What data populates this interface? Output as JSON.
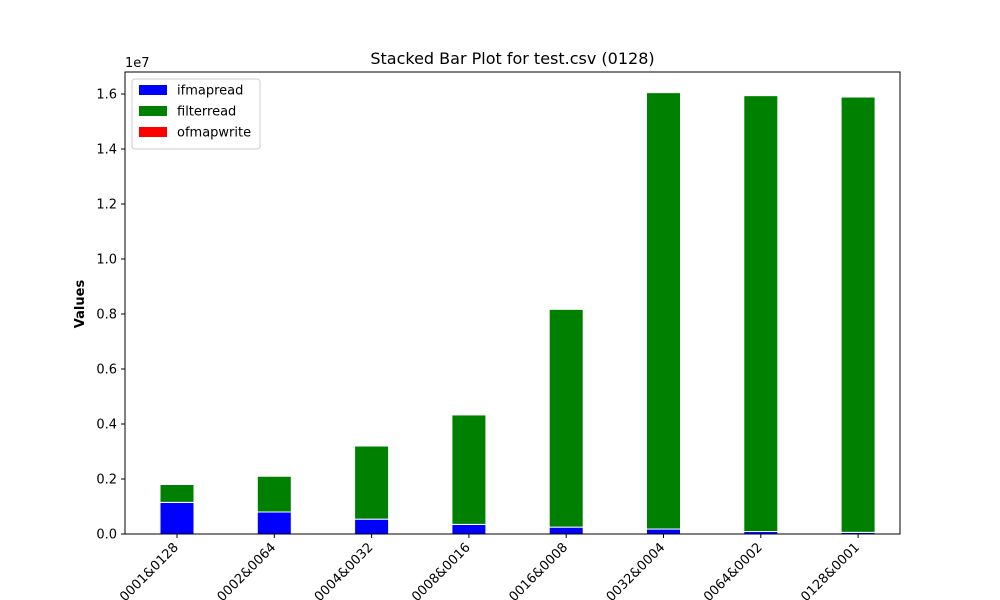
{
  "chart_data": {
    "type": "bar",
    "stacked": true,
    "title": "Stacked Bar Plot for test.csv (0128)",
    "xlabel": "",
    "ylabel": "Values",
    "offset_label": "1e7",
    "ylim": [
      0,
      16800000
    ],
    "yticks": [
      "0.0",
      "0.2",
      "0.4",
      "0.6",
      "0.8",
      "1.0",
      "1.2",
      "1.4",
      "1.6"
    ],
    "ytick_values": [
      0,
      2000000,
      4000000,
      6000000,
      8000000,
      10000000,
      12000000,
      14000000,
      16000000
    ],
    "categories": [
      "0001&0128",
      "0002&0064",
      "0004&0032",
      "0008&0016",
      "0016&0008",
      "0032&0004",
      "0064&0002",
      "0128&0001"
    ],
    "series": [
      {
        "name": "ifmapread",
        "color": "#0000ff",
        "values": [
          1150000,
          800000,
          540000,
          350000,
          250000,
          180000,
          90000,
          60000
        ]
      },
      {
        "name": "filterread",
        "color": "#008000",
        "values": [
          650000,
          1300000,
          2660000,
          3980000,
          7920000,
          15870000,
          15850000,
          15830000
        ]
      },
      {
        "name": "ofmapwrite",
        "color": "#ff0000",
        "values": [
          0,
          0,
          0,
          0,
          0,
          0,
          0,
          0
        ]
      }
    ],
    "legend_position": "upper-left",
    "grid": false
  }
}
